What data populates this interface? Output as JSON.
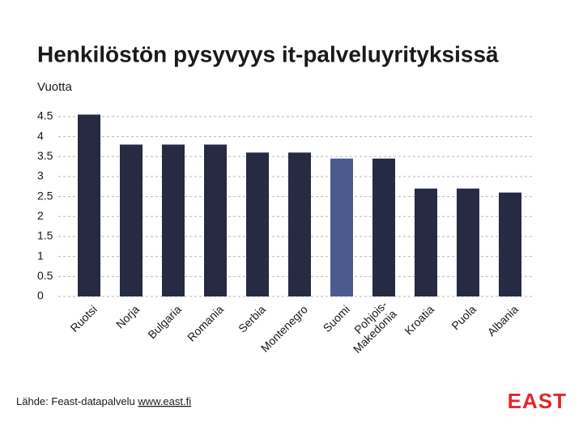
{
  "chart_data": {
    "type": "bar",
    "title": "Henkilöstön pysyvyys it-palveluyrityksissä",
    "y_label": "Vuotta",
    "categories": [
      "Ruotsi",
      "Norja",
      "Bulgaria",
      "Romania",
      "Serbia",
      "Montenegro",
      "Suomi",
      "Pohjois-Makedonia",
      "Kroatia",
      "Puola",
      "Albania"
    ],
    "values": [
      4.55,
      3.8,
      3.8,
      3.8,
      3.6,
      3.6,
      3.45,
      3.45,
      2.7,
      2.7,
      2.6
    ],
    "colors": [
      "#262a42",
      "#262a42",
      "#262a42",
      "#262a42",
      "#262a42",
      "#262a42",
      "#4d5a8e",
      "#262a42",
      "#262a42",
      "#262a42",
      "#262a42"
    ],
    "ylim": [
      0,
      4.6
    ],
    "yticks": [
      0,
      0.5,
      1,
      1.5,
      2,
      2.5,
      3,
      3.5,
      4,
      4.5
    ],
    "grid": true,
    "source": "Lähde: Feast-datapalvelu",
    "source_link": "www.east.fi",
    "logo": "EAST"
  }
}
